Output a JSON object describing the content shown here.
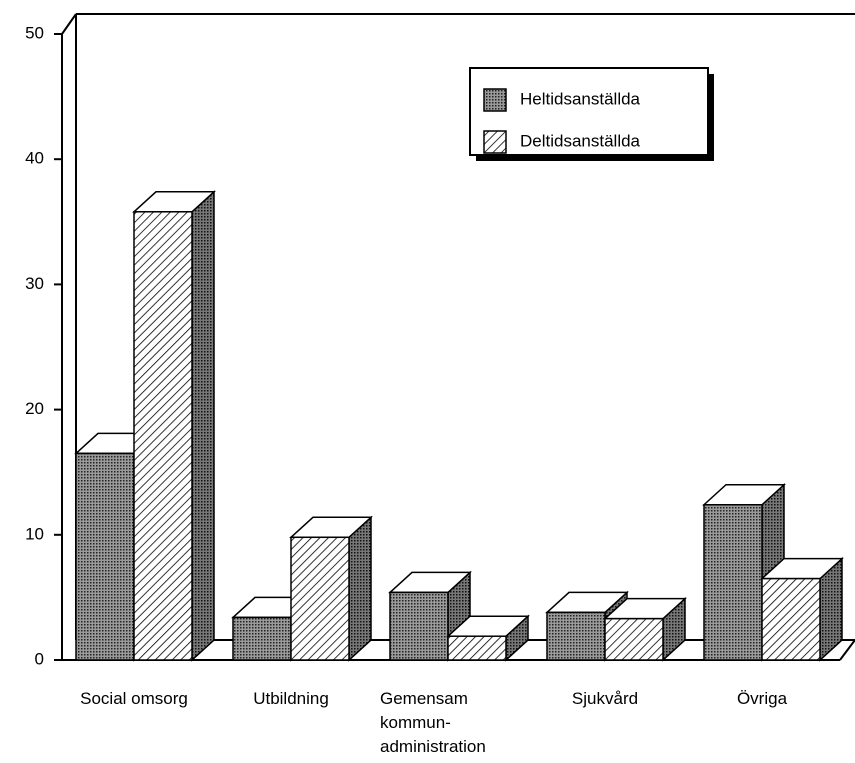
{
  "chart_data": {
    "type": "bar3d",
    "categories": [
      "Social omsorg",
      "Utbildning",
      "Gemensam\nkommun-\nadministration",
      "Sjukvård",
      "Övriga"
    ],
    "series": [
      {
        "name": "Heltidsanställda",
        "color": "#6e6e6e",
        "values": [
          16.5,
          3.4,
          5.4,
          3.8,
          12.4
        ]
      },
      {
        "name": "Deltidsanställda",
        "color": "#ffffff",
        "values": [
          35.8,
          9.8,
          1.9,
          3.3,
          6.5
        ]
      }
    ],
    "ylim": [
      0,
      50
    ],
    "yticks": [
      0,
      10,
      20,
      30,
      40,
      50
    ],
    "legend": "upper right"
  }
}
